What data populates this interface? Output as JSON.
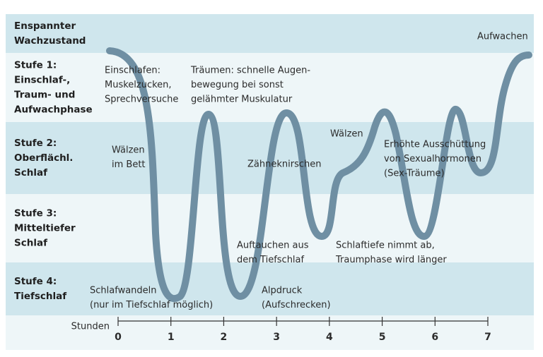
{
  "bands": [
    {
      "label": [
        "Enspannter",
        "Wachzustand"
      ]
    },
    {
      "label": [
        "Stufe 1:",
        "Einschlaf-,",
        "Traum- und",
        "Aufwachphase"
      ]
    },
    {
      "label": [
        "Stufe 2:",
        "Oberflächl.",
        "Schlaf"
      ]
    },
    {
      "label": [
        "Stufe 3:",
        "Mitteltiefer",
        "Schlaf"
      ]
    },
    {
      "label": [
        "Stufe 4:",
        "Tiefschlaf"
      ]
    }
  ],
  "annotations": [
    {
      "lines": [
        "Einschlafen:",
        "Muskelzucken,",
        "Sprechversuche"
      ]
    },
    {
      "lines": [
        "Träumen: schnelle Augen-",
        "bewegung bei sonst",
        "gelähmter Muskulatur"
      ]
    },
    {
      "lines": [
        "Aufwachen"
      ]
    },
    {
      "lines": [
        "Wälzen",
        "im Bett"
      ]
    },
    {
      "lines": [
        "Zähneknirschen"
      ]
    },
    {
      "lines": [
        "Wälzen"
      ]
    },
    {
      "lines": [
        "Erhöhte Ausschüttung",
        "von Sexualhormonen",
        "(Sex-Träume)"
      ]
    },
    {
      "lines": [
        "Auftauchen aus",
        "dem Tiefschlaf"
      ]
    },
    {
      "lines": [
        "Schlaftiefe nimmt ab,",
        "Traumphase wird länger"
      ]
    },
    {
      "lines": [
        "Schlafwandeln",
        "(nur im Tiefschlaf möglich)"
      ]
    },
    {
      "lines": [
        "Alpdruck",
        "(Aufschrecken)"
      ]
    }
  ],
  "axis": {
    "label": "Stunden",
    "ticks": [
      0,
      1,
      2,
      3,
      4,
      5,
      6,
      7
    ]
  }
}
